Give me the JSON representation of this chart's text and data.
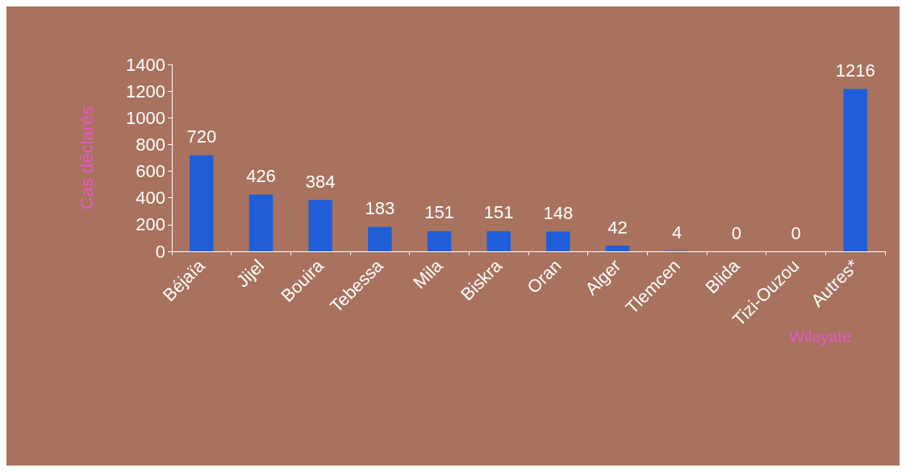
{
  "chart_data": {
    "type": "bar",
    "xlabel": "Wilayate",
    "ylabel": "Cas déclarés",
    "categories": [
      "Béjaïa",
      "Jijel",
      "Bouira",
      "Tebessa",
      "Mila",
      "Biskra",
      "Oran",
      "Alger",
      "Tlemcen",
      "Blida",
      "Tizi-Ouzou",
      "Autres*"
    ],
    "values": [
      720,
      426,
      384,
      183,
      151,
      151,
      148,
      42,
      4,
      0,
      0,
      1216
    ],
    "color": "#1f5ed8",
    "ylim": [
      0,
      1400
    ],
    "yticks": [
      0,
      200,
      400,
      600,
      800,
      1000,
      1200,
      1400
    ],
    "data_labels": true,
    "grid": false
  }
}
